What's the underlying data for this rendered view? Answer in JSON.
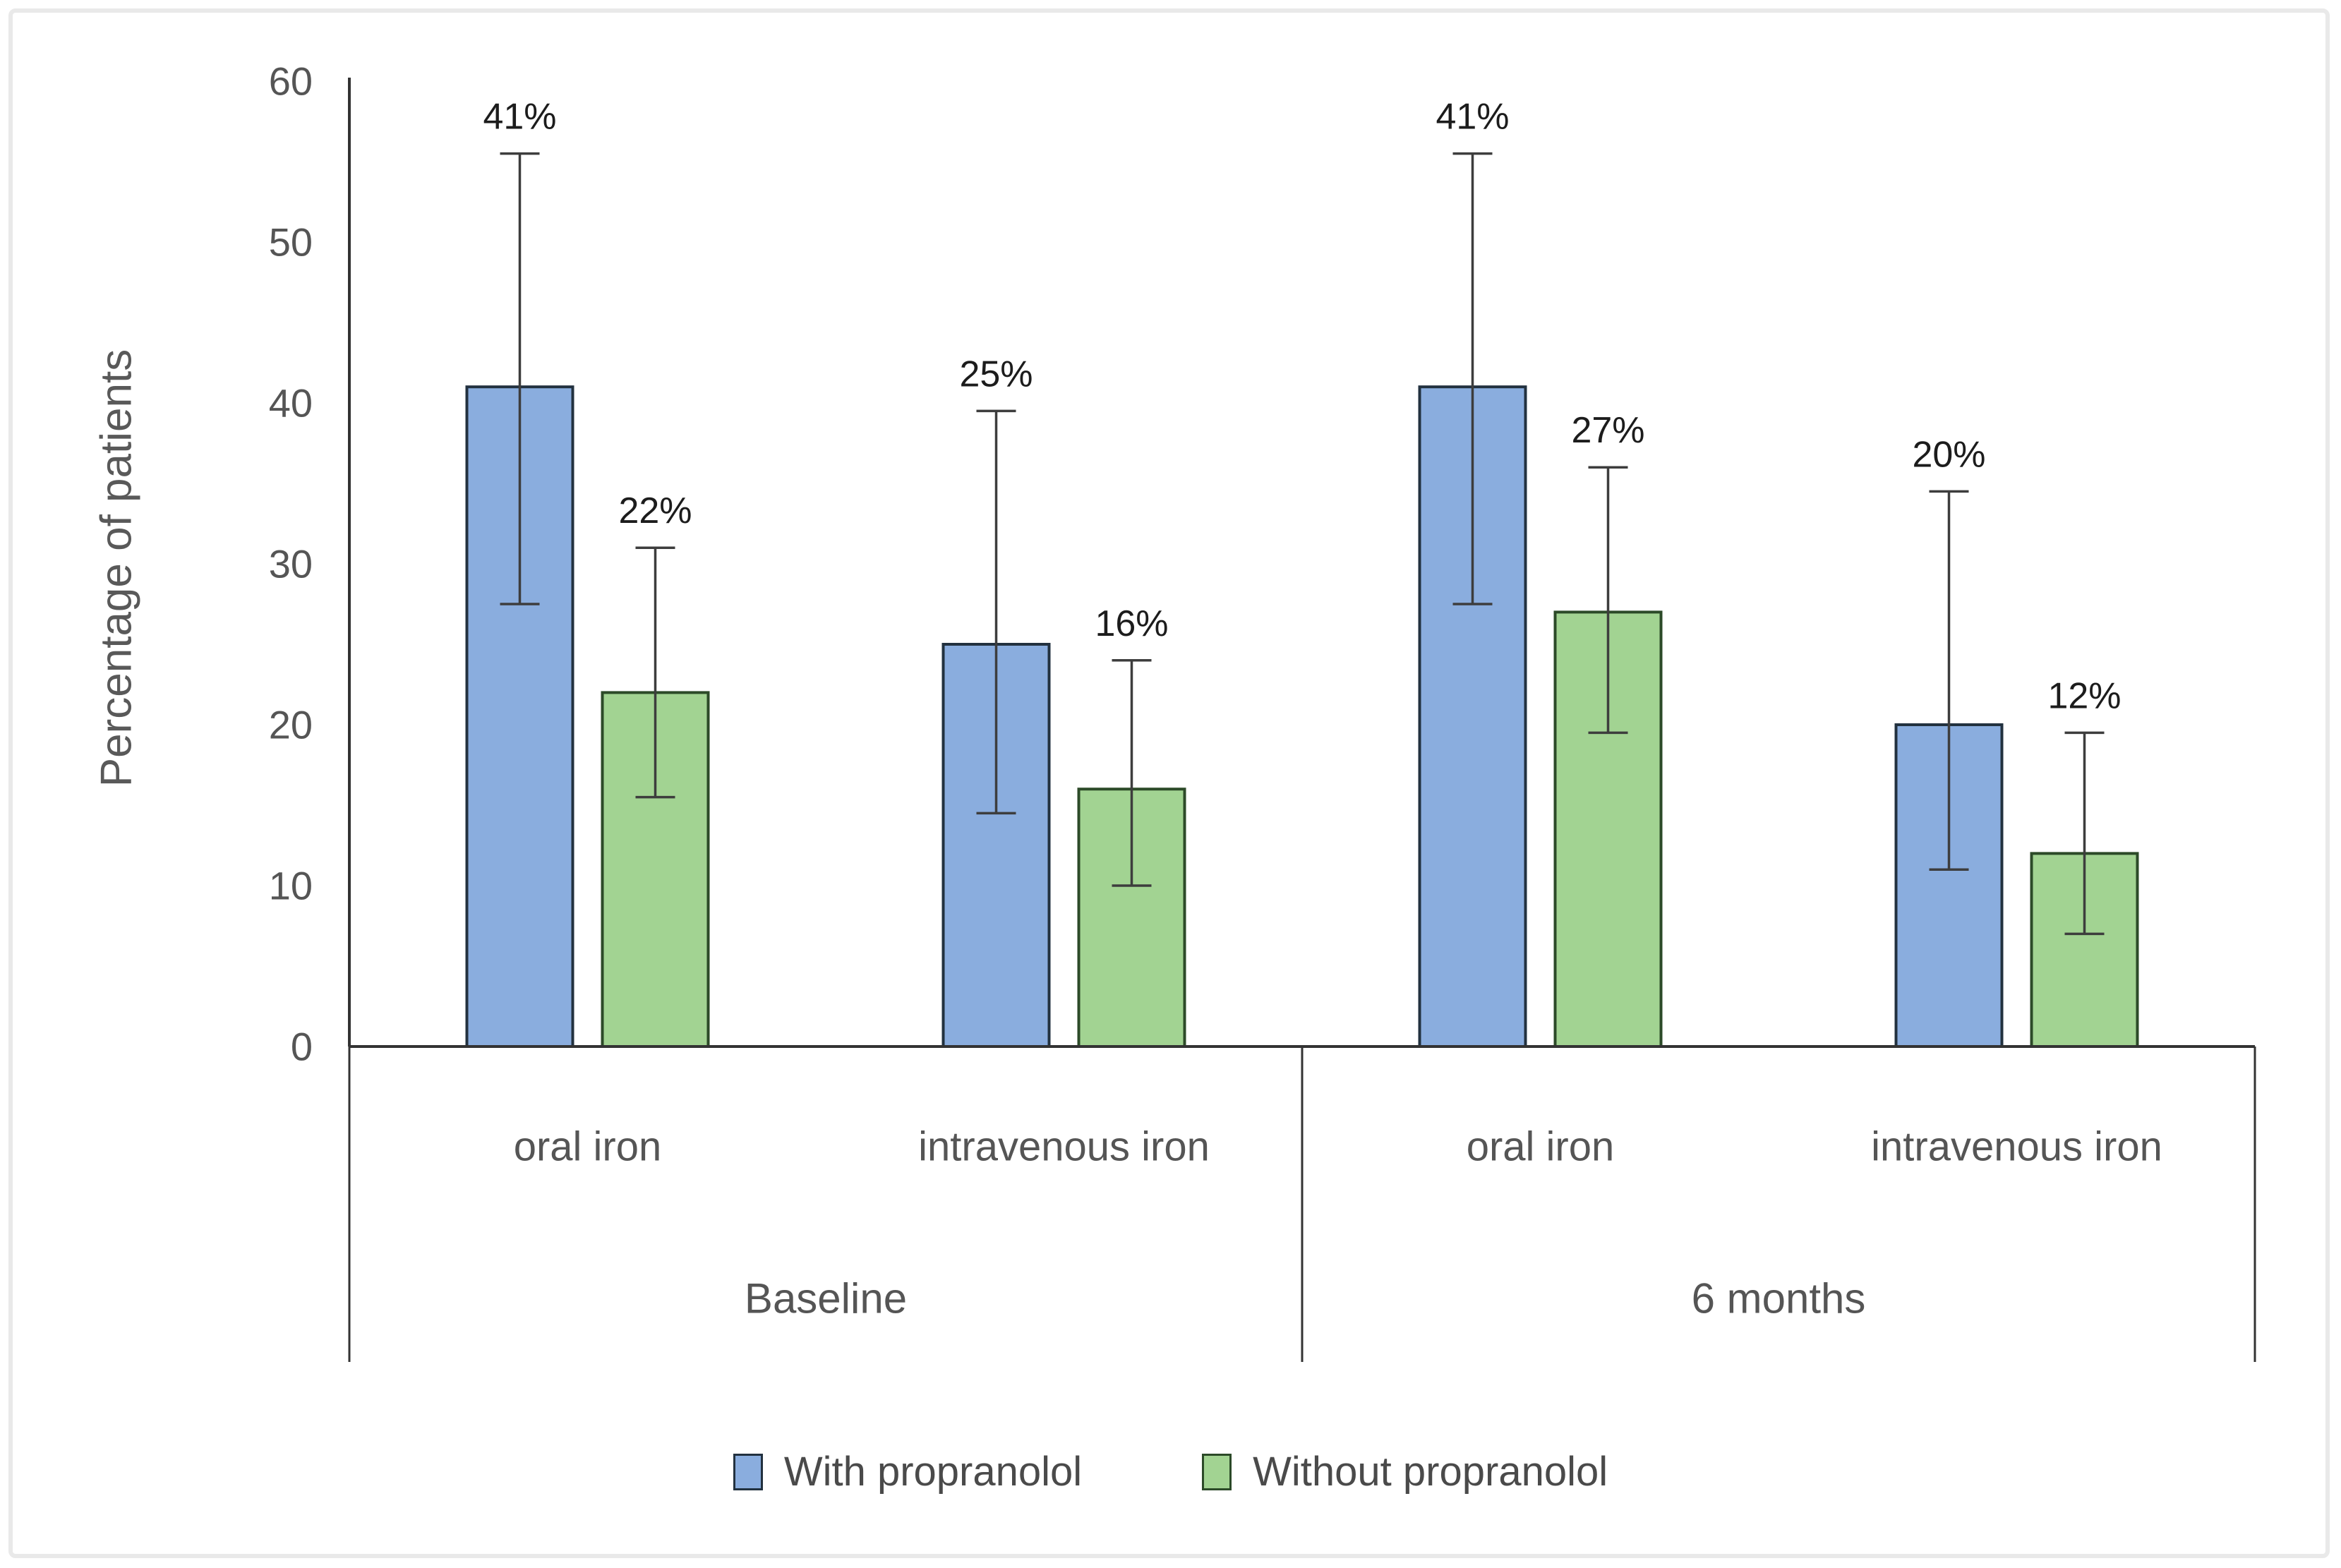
{
  "chart_data": {
    "type": "bar",
    "title": "",
    "ylabel": "Percentage of patients",
    "xlabel": "",
    "ylim": [
      0,
      60
    ],
    "yticks": [
      0,
      10,
      20,
      30,
      40,
      50,
      60
    ],
    "grid": false,
    "legend_position": "bottom",
    "groups": [
      {
        "label": "Baseline",
        "categories": [
          "oral iron",
          "intravenous iron"
        ]
      },
      {
        "label": "6 months",
        "categories": [
          "oral iron",
          "intravenous iron"
        ]
      }
    ],
    "category_order_note": "values arrays ordered: Baseline/oral, Baseline/intravenous, 6 months/oral, 6 months/intravenous",
    "series": [
      {
        "name": "With propranolol",
        "color": "#8aadde",
        "border_color": "#22313f",
        "values": [
          41,
          25,
          41,
          20
        ],
        "data_labels": [
          "41%",
          "25%",
          "41%",
          "20%"
        ],
        "error_low": [
          27.5,
          14.5,
          27.5,
          11
        ],
        "error_high": [
          55.5,
          39.5,
          55.5,
          34.5
        ]
      },
      {
        "name": "Without propranolol",
        "color": "#a2d392",
        "border_color": "#2c4a28",
        "values": [
          22,
          16,
          27,
          12
        ],
        "data_labels": [
          "22%",
          "16%",
          "27%",
          "12%"
        ],
        "error_low": [
          15.5,
          10,
          19.5,
          7
        ],
        "error_high": [
          31,
          24,
          36,
          19.5
        ]
      }
    ],
    "colors": {
      "axis": "#333333",
      "error_bar": "#3d3d3d",
      "tick_label": "#555555",
      "category_label": "#555555",
      "group_label": "#555555",
      "data_label": "#1c1c1c",
      "frame_border": "#e9e9e9"
    }
  }
}
